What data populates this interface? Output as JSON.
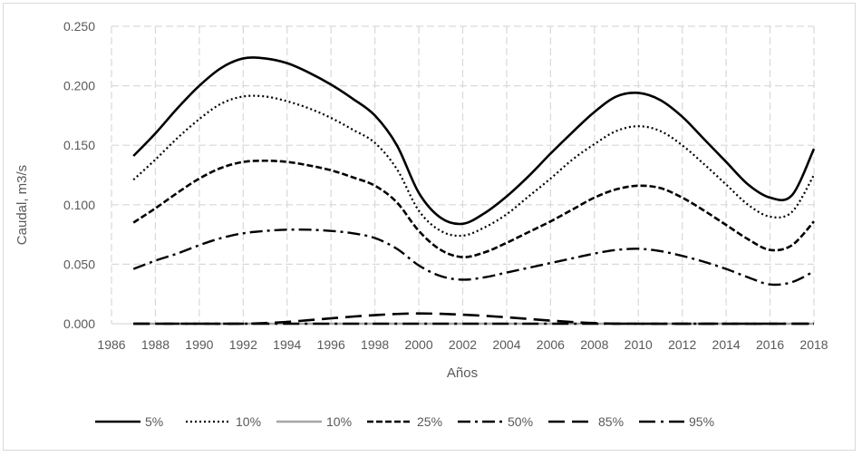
{
  "chart_data": {
    "type": "line",
    "title": "",
    "xlabel": "Años",
    "ylabel": "Caudal, m3/s",
    "xlim": [
      1986,
      2018
    ],
    "ylim": [
      0,
      0.25
    ],
    "x_ticks": [
      1986,
      1988,
      1990,
      1992,
      1994,
      1996,
      1998,
      2000,
      2002,
      2004,
      2006,
      2008,
      2010,
      2012,
      2014,
      2016,
      2018
    ],
    "x_tick_labels": [
      "1986",
      "1988",
      "1990",
      "1992",
      "1994",
      "1996",
      "1998",
      "2000",
      "2002",
      "2004",
      "2006",
      "2008",
      "2010",
      "2012",
      "2014",
      "2016",
      "2018"
    ],
    "y_ticks": [
      0,
      0.05,
      0.1,
      0.15,
      0.2,
      0.25
    ],
    "y_tick_labels": [
      "0.000",
      "0.050",
      "0.100",
      "0.150",
      "0.200",
      "0.250"
    ],
    "grid": true,
    "legend_position": "bottom",
    "series": [
      {
        "name": "5%",
        "color": "#000000",
        "style": "solid",
        "x": [
          1987,
          1988,
          1989,
          1990,
          1991,
          1992,
          1993,
          1994,
          1995,
          1996,
          1997,
          1998,
          1999,
          2000,
          2001,
          2002,
          2003,
          2004,
          2005,
          2006,
          2007,
          2008,
          2009,
          2010,
          2011,
          2012,
          2013,
          2014,
          2015,
          2016,
          2017,
          2018
        ],
        "values": [
          0.141,
          0.16,
          0.181,
          0.2,
          0.215,
          0.223,
          0.223,
          0.219,
          0.211,
          0.201,
          0.189,
          0.175,
          0.15,
          0.11,
          0.089,
          0.084,
          0.093,
          0.107,
          0.124,
          0.143,
          0.161,
          0.178,
          0.191,
          0.194,
          0.188,
          0.174,
          0.155,
          0.136,
          0.117,
          0.106,
          0.108,
          0.147
        ]
      },
      {
        "name": "10%",
        "color": "#000000",
        "style": "dotted",
        "x": [
          1987,
          1988,
          1989,
          1990,
          1991,
          1992,
          1993,
          1994,
          1995,
          1996,
          1997,
          1998,
          1999,
          2000,
          2001,
          2002,
          2003,
          2004,
          2005,
          2006,
          2007,
          2008,
          2009,
          2010,
          2011,
          2012,
          2013,
          2014,
          2015,
          2016,
          2017,
          2018
        ],
        "values": [
          0.121,
          0.138,
          0.156,
          0.172,
          0.185,
          0.191,
          0.191,
          0.187,
          0.181,
          0.173,
          0.163,
          0.152,
          0.13,
          0.095,
          0.078,
          0.074,
          0.081,
          0.092,
          0.107,
          0.122,
          0.138,
          0.151,
          0.162,
          0.166,
          0.162,
          0.15,
          0.134,
          0.117,
          0.1,
          0.09,
          0.094,
          0.125
        ]
      },
      {
        "name": "10%",
        "color": "#a6a6a6",
        "style": "solid",
        "x": [
          1987,
          2018
        ],
        "values": [
          0,
          0
        ]
      },
      {
        "name": "25%",
        "color": "#000000",
        "style": "short-dash",
        "x": [
          1987,
          1988,
          1989,
          1990,
          1991,
          1992,
          1993,
          1994,
          1995,
          1996,
          1997,
          1998,
          1999,
          2000,
          2001,
          2002,
          2003,
          2004,
          2005,
          2006,
          2007,
          2008,
          2009,
          2010,
          2011,
          2012,
          2013,
          2014,
          2015,
          2016,
          2017,
          2018
        ],
        "values": [
          0.085,
          0.097,
          0.11,
          0.122,
          0.131,
          0.136,
          0.137,
          0.136,
          0.133,
          0.129,
          0.123,
          0.116,
          0.102,
          0.078,
          0.062,
          0.056,
          0.06,
          0.068,
          0.077,
          0.086,
          0.096,
          0.106,
          0.113,
          0.116,
          0.114,
          0.106,
          0.095,
          0.083,
          0.071,
          0.062,
          0.066,
          0.086
        ]
      },
      {
        "name": "50%",
        "color": "#000000",
        "style": "dash-dot",
        "x": [
          1987,
          1988,
          1989,
          1990,
          1991,
          1992,
          1993,
          1994,
          1995,
          1996,
          1997,
          1998,
          1999,
          2000,
          2001,
          2002,
          2003,
          2004,
          2005,
          2006,
          2007,
          2008,
          2009,
          2010,
          2011,
          2012,
          2013,
          2014,
          2015,
          2016,
          2017,
          2018
        ],
        "values": [
          0.046,
          0.053,
          0.059,
          0.066,
          0.072,
          0.076,
          0.078,
          0.079,
          0.079,
          0.078,
          0.076,
          0.072,
          0.063,
          0.049,
          0.04,
          0.037,
          0.039,
          0.043,
          0.047,
          0.051,
          0.055,
          0.059,
          0.062,
          0.063,
          0.061,
          0.057,
          0.052,
          0.046,
          0.039,
          0.033,
          0.035,
          0.044
        ]
      },
      {
        "name": "85%",
        "color": "#000000",
        "style": "long-dash",
        "x": [
          1987,
          1990,
          1992,
          1993,
          1994,
          1995,
          1996,
          1997,
          1998,
          1999,
          2000,
          2001,
          2002,
          2003,
          2004,
          2005,
          2006,
          2007,
          2008,
          2010,
          2018
        ],
        "values": [
          0.0,
          0.0,
          0.0,
          0.0005,
          0.0015,
          0.003,
          0.0045,
          0.006,
          0.0072,
          0.0082,
          0.0086,
          0.0083,
          0.0076,
          0.0066,
          0.0054,
          0.004,
          0.0026,
          0.0014,
          0.0005,
          0.0,
          0.0
        ]
      },
      {
        "name": "95%",
        "color": "#000000",
        "style": "long-dash-dot",
        "x": [
          1987,
          2018
        ],
        "values": [
          0,
          0
        ]
      }
    ]
  }
}
